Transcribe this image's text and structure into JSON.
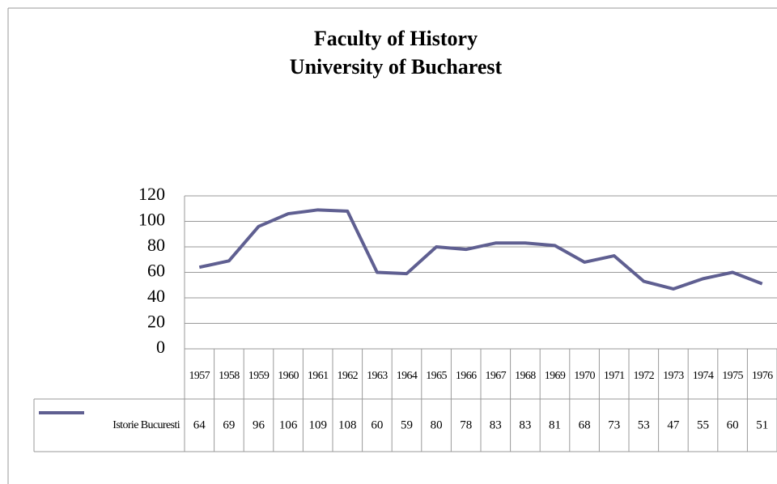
{
  "chart_data": {
    "type": "line",
    "title": [
      "Faculty of History",
      "University of Bucharest"
    ],
    "categories": [
      "1957",
      "1958",
      "1959",
      "1960",
      "1961",
      "1962",
      "1963",
      "1964",
      "1965",
      "1966",
      "1967",
      "1968",
      "1969",
      "1970",
      "1971",
      "1972",
      "1973",
      "1974",
      "1975",
      "1976"
    ],
    "series": [
      {
        "name": "Istorie Bucuresti",
        "color": "#5f5f91",
        "values": [
          64,
          69,
          96,
          106,
          109,
          108,
          60,
          59,
          80,
          78,
          83,
          83,
          81,
          68,
          73,
          53,
          47,
          55,
          60,
          51
        ]
      }
    ],
    "ylim": [
      0,
      120
    ],
    "yticks": [
      0,
      20,
      40,
      60,
      80,
      100,
      120
    ],
    "grid": true,
    "data_table": true
  }
}
